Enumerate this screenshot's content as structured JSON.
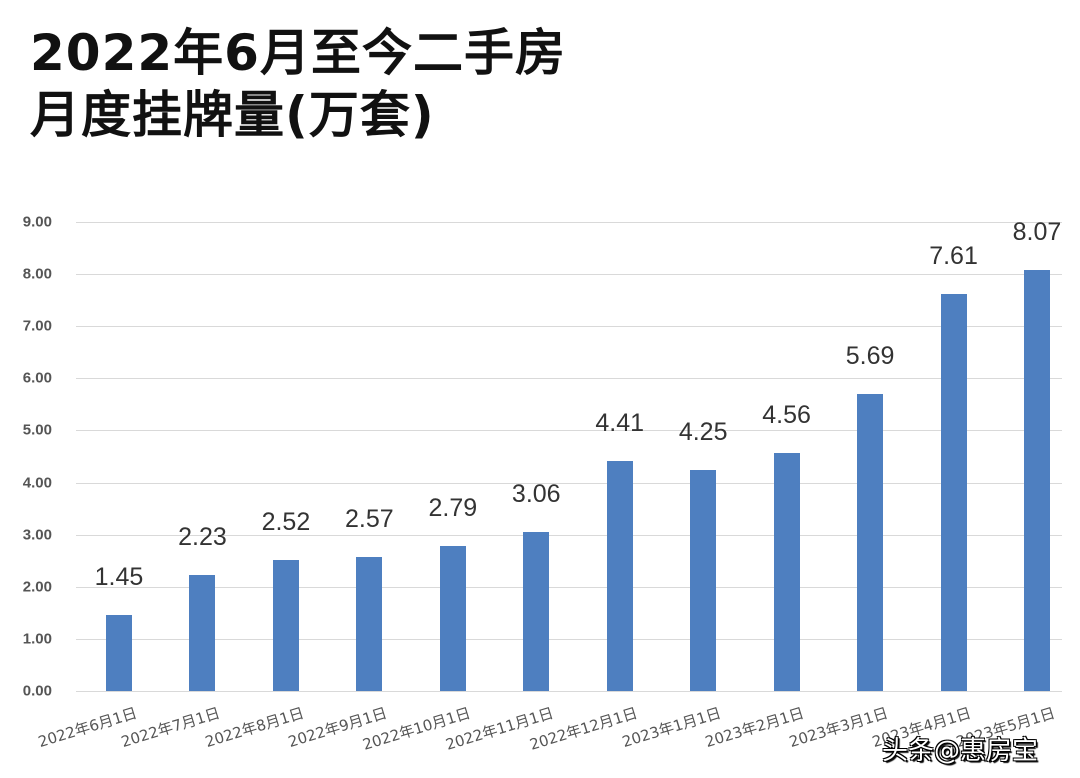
{
  "title": {
    "line1": "2022年6月至今二手房",
    "line2": "月度挂牌量(万套)"
  },
  "watermark": "头条@惠房宝",
  "colors": {
    "bar": "#4e7fc0",
    "grid": "#d9d9d9",
    "tick_text": "#555555",
    "label_text": "#333333"
  },
  "chart_data": {
    "type": "bar",
    "title": "2022年6月至今二手房月度挂牌量(万套)",
    "xlabel": "",
    "ylabel": "",
    "ylim": [
      0,
      9
    ],
    "yticks": [
      "0.00",
      "1.00",
      "2.00",
      "3.00",
      "4.00",
      "5.00",
      "6.00",
      "7.00",
      "8.00",
      "9.00"
    ],
    "grid": true,
    "legend": null,
    "categories": [
      "2022年6月1日",
      "2022年7月1日",
      "2022年8月1日",
      "2022年9月1日",
      "2022年10月1日",
      "2022年11月1日",
      "2022年12月1日",
      "2023年1月1日",
      "2023年2月1日",
      "2023年3月1日",
      "2023年4月1日",
      "2023年5月1日"
    ],
    "values": [
      1.45,
      2.23,
      2.52,
      2.57,
      2.79,
      3.06,
      4.41,
      4.25,
      4.56,
      5.69,
      7.61,
      8.07
    ],
    "value_labels": [
      "1.45",
      "2.23",
      "2.52",
      "2.57",
      "2.79",
      "3.06",
      "4.41",
      "4.25",
      "4.56",
      "5.69",
      "7.61",
      "8.07"
    ]
  }
}
